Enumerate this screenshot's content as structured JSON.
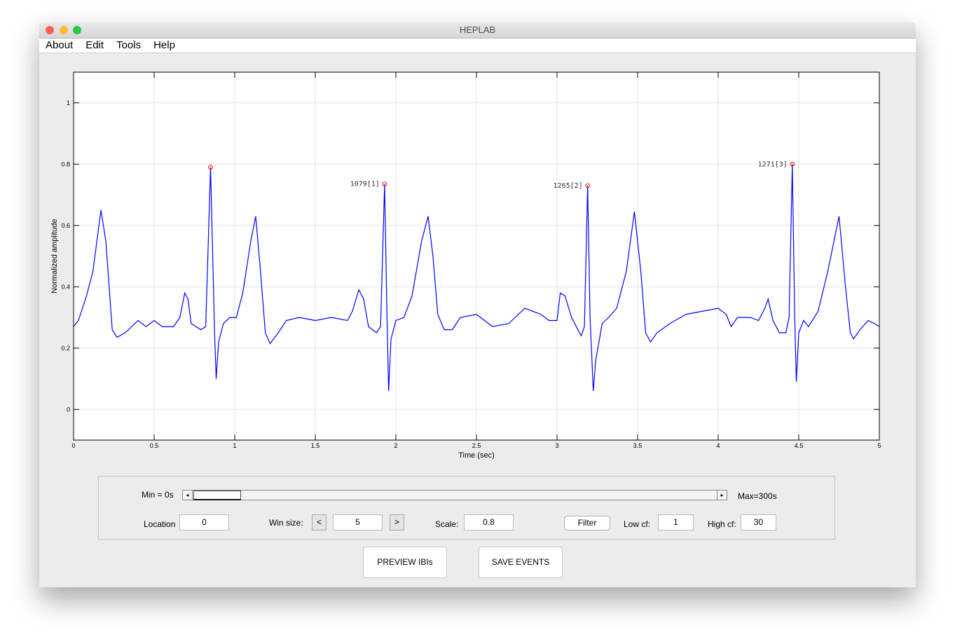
{
  "window": {
    "title": "HEPLAB"
  },
  "menu": [
    "About",
    "Edit",
    "Tools",
    "Help"
  ],
  "chart_data": {
    "type": "line",
    "xlabel": "Time (sec)",
    "ylabel": "Normalized amplitude",
    "xlim": [
      0,
      5
    ],
    "ylim": [
      -0.1,
      1.1
    ],
    "xticks": [
      0,
      0.5,
      1,
      1.5,
      2,
      2.5,
      3,
      3.5,
      4,
      4.5,
      5
    ],
    "yticks": [
      0,
      0.2,
      0.4,
      0.6,
      0.8,
      1
    ],
    "grid": true,
    "x": [
      0,
      0.03,
      0.08,
      0.12,
      0.17,
      0.2,
      0.24,
      0.27,
      0.32,
      0.4,
      0.45,
      0.5,
      0.55,
      0.62,
      0.66,
      0.69,
      0.71,
      0.73,
      0.79,
      0.82,
      0.85,
      0.875,
      0.885,
      0.9,
      0.93,
      0.97,
      1.01,
      1.05,
      1.1,
      1.13,
      1.16,
      1.19,
      1.22,
      1.27,
      1.32,
      1.4,
      1.5,
      1.6,
      1.7,
      1.73,
      1.77,
      1.8,
      1.83,
      1.88,
      1.905,
      1.93,
      1.945,
      1.955,
      1.97,
      2.0,
      2.05,
      2.1,
      2.16,
      2.2,
      2.23,
      2.26,
      2.3,
      2.35,
      2.4,
      2.5,
      2.55,
      2.6,
      2.7,
      2.8,
      2.9,
      2.95,
      3.0,
      3.02,
      3.05,
      3.09,
      3.15,
      3.17,
      3.19,
      3.205,
      3.225,
      3.24,
      3.28,
      3.32,
      3.37,
      3.43,
      3.48,
      3.52,
      3.55,
      3.58,
      3.62,
      3.7,
      3.8,
      3.9,
      4.0,
      4.05,
      4.08,
      4.12,
      4.2,
      4.25,
      4.29,
      4.31,
      4.34,
      4.38,
      4.42,
      4.44,
      4.46,
      4.475,
      4.485,
      4.5,
      4.53,
      4.56,
      4.62,
      4.68,
      4.75,
      4.79,
      4.82,
      4.84,
      4.88,
      4.93,
      4.97,
      5.0
    ],
    "series": [
      {
        "color": "#0000ff",
        "values": [
          0.27,
          0.29,
          0.37,
          0.45,
          0.65,
          0.55,
          0.26,
          0.235,
          0.25,
          0.29,
          0.27,
          0.29,
          0.27,
          0.27,
          0.3,
          0.38,
          0.36,
          0.28,
          0.26,
          0.27,
          0.79,
          0.25,
          0.1,
          0.22,
          0.28,
          0.3,
          0.3,
          0.38,
          0.55,
          0.63,
          0.45,
          0.25,
          0.215,
          0.25,
          0.29,
          0.3,
          0.29,
          0.3,
          0.29,
          0.32,
          0.39,
          0.36,
          0.27,
          0.25,
          0.27,
          0.735,
          0.3,
          0.06,
          0.23,
          0.29,
          0.3,
          0.37,
          0.55,
          0.63,
          0.5,
          0.31,
          0.26,
          0.26,
          0.3,
          0.31,
          0.29,
          0.27,
          0.28,
          0.33,
          0.31,
          0.29,
          0.29,
          0.38,
          0.37,
          0.3,
          0.24,
          0.27,
          0.73,
          0.3,
          0.06,
          0.16,
          0.28,
          0.3,
          0.33,
          0.45,
          0.645,
          0.45,
          0.25,
          0.22,
          0.25,
          0.28,
          0.31,
          0.32,
          0.33,
          0.31,
          0.27,
          0.3,
          0.3,
          0.29,
          0.33,
          0.36,
          0.29,
          0.25,
          0.25,
          0.3,
          0.8,
          0.3,
          0.09,
          0.25,
          0.29,
          0.27,
          0.32,
          0.45,
          0.63,
          0.4,
          0.25,
          0.23,
          0.26,
          0.29,
          0.28,
          0.27
        ]
      }
    ],
    "markers": {
      "color": "#ff0000",
      "x": [
        0.85,
        1.93,
        3.19,
        4.46
      ],
      "values": [
        0.79,
        0.735,
        0.73,
        0.8
      ],
      "labels": [
        null,
        "1079[1]",
        "1265[2]",
        "1271[3]"
      ]
    }
  },
  "controls": {
    "min_label": "Min = 0s",
    "max_label": "Max=300s",
    "location_label": "Location",
    "location": 0,
    "win_size_label": "Win size:",
    "win_prev": "<",
    "win_size": 5,
    "win_next": ">",
    "scale_label": "Scale:",
    "scale": 0.8,
    "filter": "Filter",
    "low_cf_label": "Low cf:",
    "low_cf": 1,
    "high_cf_label": "High cf:",
    "high_cf": 30
  },
  "buttons": [
    "PREVIEW IBIs",
    "SAVE EVENTS"
  ]
}
